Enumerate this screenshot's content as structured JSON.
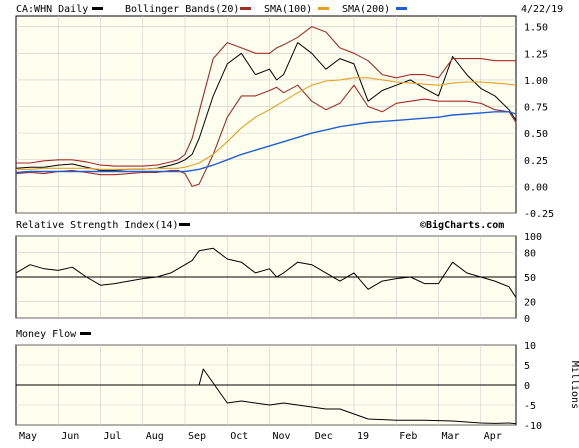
{
  "header": {
    "ticker_label": "CA:WHN Daily",
    "bollinger_label": "Bollinger Bands(20)",
    "sma100_label": "SMA(100)",
    "sma200_label": "SMA(200)",
    "date": "4/22/19"
  },
  "watermark": "©BigCharts.com",
  "colors": {
    "price": "#000000",
    "bollinger": "#a52a2a",
    "sma100": "#e8a020",
    "sma200": "#1f5fd6",
    "panel_bg": "#fffff0",
    "grid": "#cccccc"
  },
  "chart_data": [
    {
      "type": "line",
      "panel": "price",
      "y_ticks": [
        "1.50",
        "1.25",
        "1.00",
        "0.75",
        "0.50",
        "0.25",
        "0.00",
        "-0.25"
      ],
      "ylim": [
        -0.25,
        1.6
      ],
      "x": [
        0,
        10,
        20,
        30,
        40,
        50,
        60,
        70,
        80,
        90,
        100,
        110,
        115,
        120,
        125,
        130,
        140,
        150,
        160,
        170,
        180,
        185,
        190,
        200,
        210,
        220,
        230,
        240,
        250,
        260,
        270,
        280,
        290,
        300,
        310,
        320,
        330,
        340,
        350,
        355
      ],
      "series": [
        {
          "name": "CA:WHN Daily",
          "values": [
            0.17,
            0.18,
            0.18,
            0.2,
            0.21,
            0.18,
            0.15,
            0.15,
            0.16,
            0.16,
            0.17,
            0.2,
            0.22,
            0.25,
            0.3,
            0.45,
            0.85,
            1.15,
            1.25,
            1.05,
            1.1,
            1.0,
            1.05,
            1.35,
            1.25,
            1.1,
            1.2,
            1.15,
            0.8,
            0.9,
            0.95,
            1.0,
            0.92,
            0.85,
            1.22,
            1.05,
            0.92,
            0.85,
            0.72,
            0.62
          ]
        },
        {
          "name": "Bollinger Upper",
          "values": [
            0.22,
            0.22,
            0.24,
            0.25,
            0.25,
            0.23,
            0.2,
            0.19,
            0.19,
            0.19,
            0.2,
            0.23,
            0.25,
            0.3,
            0.45,
            0.7,
            1.2,
            1.35,
            1.3,
            1.25,
            1.25,
            1.3,
            1.33,
            1.4,
            1.5,
            1.45,
            1.3,
            1.25,
            1.18,
            1.05,
            1.02,
            1.05,
            1.05,
            1.02,
            1.2,
            1.2,
            1.2,
            1.18,
            1.18,
            1.18
          ]
        },
        {
          "name": "Bollinger Lower",
          "values": [
            0.12,
            0.13,
            0.12,
            0.14,
            0.15,
            0.13,
            0.11,
            0.11,
            0.12,
            0.13,
            0.13,
            0.15,
            0.15,
            0.12,
            0.0,
            0.02,
            0.3,
            0.65,
            0.85,
            0.85,
            0.9,
            0.93,
            0.88,
            0.95,
            0.8,
            0.72,
            0.78,
            0.95,
            0.75,
            0.7,
            0.78,
            0.8,
            0.82,
            0.8,
            0.8,
            0.8,
            0.78,
            0.72,
            0.7,
            0.6
          ]
        },
        {
          "name": "SMA(100)",
          "values": [
            0.16,
            0.16,
            0.17,
            0.17,
            0.17,
            0.17,
            0.16,
            0.16,
            0.16,
            0.16,
            0.17,
            0.17,
            0.17,
            0.18,
            0.2,
            0.22,
            0.3,
            0.42,
            0.55,
            0.65,
            0.72,
            0.76,
            0.8,
            0.88,
            0.95,
            0.99,
            1.0,
            1.02,
            1.02,
            1.0,
            0.98,
            0.97,
            0.96,
            0.95,
            0.97,
            0.98,
            0.98,
            0.97,
            0.96,
            0.95
          ]
        },
        {
          "name": "SMA(200)",
          "values": [
            0.13,
            0.14,
            0.14,
            0.14,
            0.14,
            0.14,
            0.14,
            0.14,
            0.14,
            0.14,
            0.14,
            0.14,
            0.14,
            0.14,
            0.15,
            0.16,
            0.2,
            0.25,
            0.3,
            0.34,
            0.38,
            0.4,
            0.42,
            0.46,
            0.5,
            0.53,
            0.56,
            0.58,
            0.6,
            0.61,
            0.62,
            0.63,
            0.64,
            0.65,
            0.67,
            0.68,
            0.69,
            0.7,
            0.7,
            0.68
          ]
        }
      ]
    },
    {
      "type": "line",
      "panel": "rsi",
      "title": "Relative Strength Index(14)",
      "y_ticks": [
        "100",
        "80",
        "50",
        "20",
        "0"
      ],
      "ylim": [
        0,
        100
      ],
      "x": [
        0,
        10,
        20,
        30,
        40,
        50,
        60,
        70,
        80,
        90,
        100,
        110,
        115,
        120,
        125,
        130,
        140,
        150,
        160,
        170,
        180,
        185,
        190,
        200,
        210,
        220,
        230,
        240,
        250,
        260,
        270,
        280,
        290,
        300,
        310,
        320,
        330,
        340,
        350,
        355
      ],
      "series": [
        {
          "name": "Relative Strength Index(14)",
          "values": [
            55,
            65,
            60,
            58,
            62,
            50,
            40,
            42,
            45,
            48,
            50,
            55,
            60,
            65,
            70,
            82,
            85,
            72,
            68,
            55,
            60,
            50,
            55,
            68,
            65,
            55,
            45,
            55,
            35,
            45,
            48,
            50,
            42,
            42,
            68,
            55,
            50,
            45,
            38,
            25
          ]
        }
      ]
    },
    {
      "type": "line",
      "panel": "money_flow",
      "title": "Money Flow",
      "y_ticks": [
        "10",
        "5",
        "0",
        "-5",
        "-10"
      ],
      "ylabel": "Millions",
      "ylim": [
        -10,
        10
      ],
      "x": [
        0,
        50,
        100,
        115,
        130,
        133,
        140,
        145,
        150,
        160,
        170,
        180,
        190,
        200,
        210,
        220,
        230,
        250,
        270,
        290,
        310,
        330,
        340,
        350,
        355
      ],
      "series": [
        {
          "name": "Money Flow",
          "values": [
            0,
            0,
            0,
            0,
            0,
            4,
            0.5,
            -2,
            -4.5,
            -4,
            -4.5,
            -5,
            -4.5,
            -5,
            -5.5,
            -6,
            -6,
            -8.5,
            -8.8,
            -8.8,
            -9.0,
            -9.5,
            -9.6,
            -9.5,
            -9.7
          ]
        }
      ]
    }
  ],
  "x_axis": {
    "months": [
      "May",
      "Jun",
      "Jul",
      "Aug",
      "Sep",
      "Oct",
      "Nov",
      "Dec",
      "19",
      "Feb",
      "Mar",
      "Apr"
    ],
    "month_positions": [
      0,
      30,
      60,
      90,
      120,
      150,
      180,
      210,
      240,
      270,
      300,
      330
    ]
  }
}
